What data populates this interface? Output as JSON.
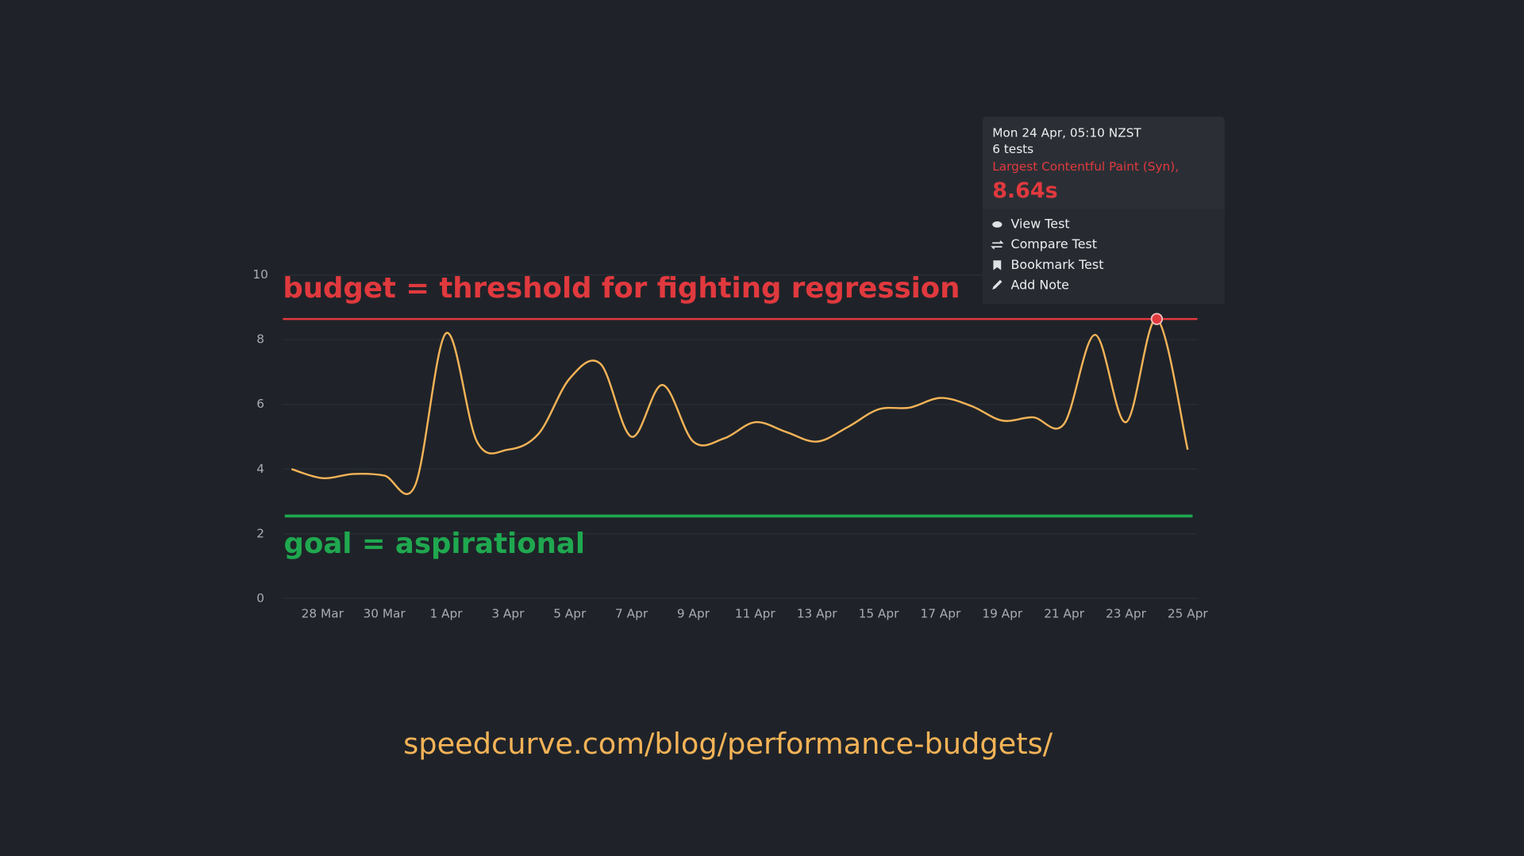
{
  "chart_data": {
    "type": "line",
    "categories": [
      null,
      "28 Mar",
      null,
      "30 Mar",
      null,
      "1 Apr",
      null,
      "3 Apr",
      null,
      "5 Apr",
      null,
      "7 Apr",
      null,
      "9 Apr",
      null,
      "11 Apr",
      null,
      "13 Apr",
      null,
      "15 Apr",
      null,
      "17 Apr",
      null,
      "19 Apr",
      null,
      "21 Apr",
      null,
      "23 Apr",
      null,
      "25 Apr"
    ],
    "series": [
      {
        "color": "#f5b357",
        "values": [
          4.0,
          3.72,
          3.85,
          3.8,
          3.5,
          8.2,
          4.85,
          4.6,
          5.1,
          6.8,
          7.25,
          5.0,
          6.6,
          4.85,
          4.95,
          5.45,
          5.15,
          4.85,
          5.3,
          5.85,
          5.9,
          6.2,
          5.95,
          5.5,
          5.6,
          5.4,
          8.15,
          5.45,
          8.64,
          4.6
        ]
      }
    ],
    "ylim": [
      0,
      10
    ],
    "yticks": [
      0,
      2,
      4,
      6,
      8,
      10
    ],
    "grid": true,
    "budget": {
      "label": "budget = threshold for fighting regression",
      "value": 8.64,
      "color": "#e0393e"
    },
    "goal": {
      "label": "goal = aspirational",
      "value": 2.55,
      "color": "#1fa84f"
    },
    "tooltip": {
      "point": 28,
      "date": "Mon 24 Apr, 05:10 NZST",
      "tests": "6 tests",
      "metric": "Largest Contentful Paint (Syn),",
      "value_label": "8.64s",
      "actions": [
        "View Test",
        "Compare Test",
        "Bookmark Test",
        "Add Note"
      ]
    }
  },
  "footer": "speedcurve.com/blog/performance-budgets/"
}
